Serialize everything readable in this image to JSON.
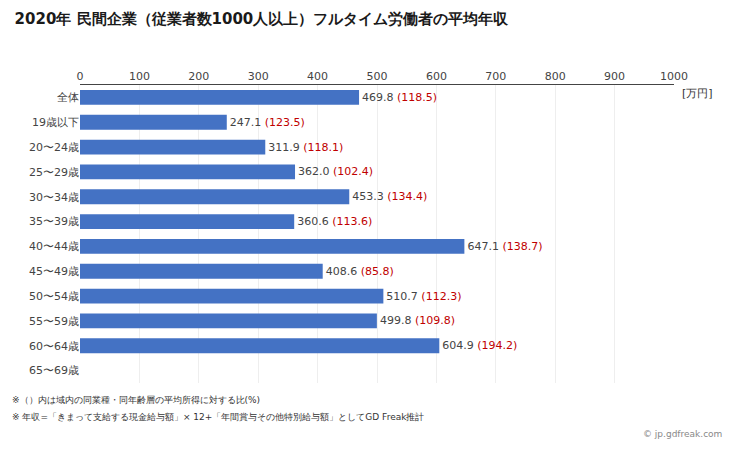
{
  "chart_data": {
    "type": "bar",
    "orientation": "horizontal",
    "title": "2020年 民間企業（従業者数1000人以上）フルタイム労働者の平均年収",
    "categories": [
      "全体",
      "19歳以下",
      "20〜24歳",
      "25〜29歳",
      "30〜34歳",
      "35〜39歳",
      "40〜44歳",
      "45〜49歳",
      "50〜54歳",
      "55〜59歳",
      "60〜64歳",
      "65〜69歳"
    ],
    "values": [
      469.8,
      247.1,
      311.9,
      362.0,
      453.3,
      360.6,
      647.1,
      408.6,
      510.7,
      499.8,
      604.9,
      null
    ],
    "value_labels": [
      "469.8",
      "247.1",
      "311.9",
      "362.0",
      "453.3",
      "360.6",
      "647.1",
      "408.6",
      "510.7",
      "499.8",
      "604.9",
      null
    ],
    "ratios": {
      "labels": [
        "(118.5)",
        "(123.5)",
        "(118.1)",
        "(102.4)",
        "(134.4)",
        "(113.6)",
        "(138.7)",
        "(85.8)",
        "(112.3)",
        "(109.8)",
        "(194.2)",
        null
      ],
      "color": "#C00000"
    },
    "color": "#4472C4",
    "xlabel": "[万円]",
    "xlim": [
      0,
      1000
    ],
    "xticks": [
      0,
      100,
      200,
      300,
      400,
      500,
      600,
      700,
      800,
      900,
      1000
    ],
    "grid": true,
    "data_labels": true,
    "footnotes": [
      "※（）内は域内の同業種・同年齢層の平均所得に対する比(%)",
      "※ 年収=「きまって支給する現金給与額」× 12+「年間賞与その他特別給与額」としてGD Freak推計"
    ],
    "watermark": "© jp.gdfreak.com"
  }
}
